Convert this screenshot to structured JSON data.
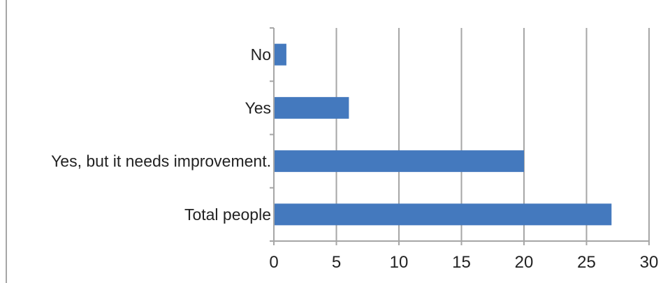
{
  "chart_data": {
    "type": "bar",
    "orientation": "horizontal",
    "categories": [
      "No",
      "Yes",
      "Yes, but it needs improvement.",
      "Total people"
    ],
    "values": [
      1,
      6,
      20,
      27
    ],
    "xlim": [
      0,
      30
    ],
    "xticks": [
      0,
      5,
      10,
      15,
      20,
      25,
      30
    ],
    "grid": "vertical",
    "legend": "none",
    "colors": {
      "bar": "#4479be",
      "grid": "#a6a6a6",
      "axis": "#a6a6a6",
      "frame": "#a6a6a6"
    }
  }
}
